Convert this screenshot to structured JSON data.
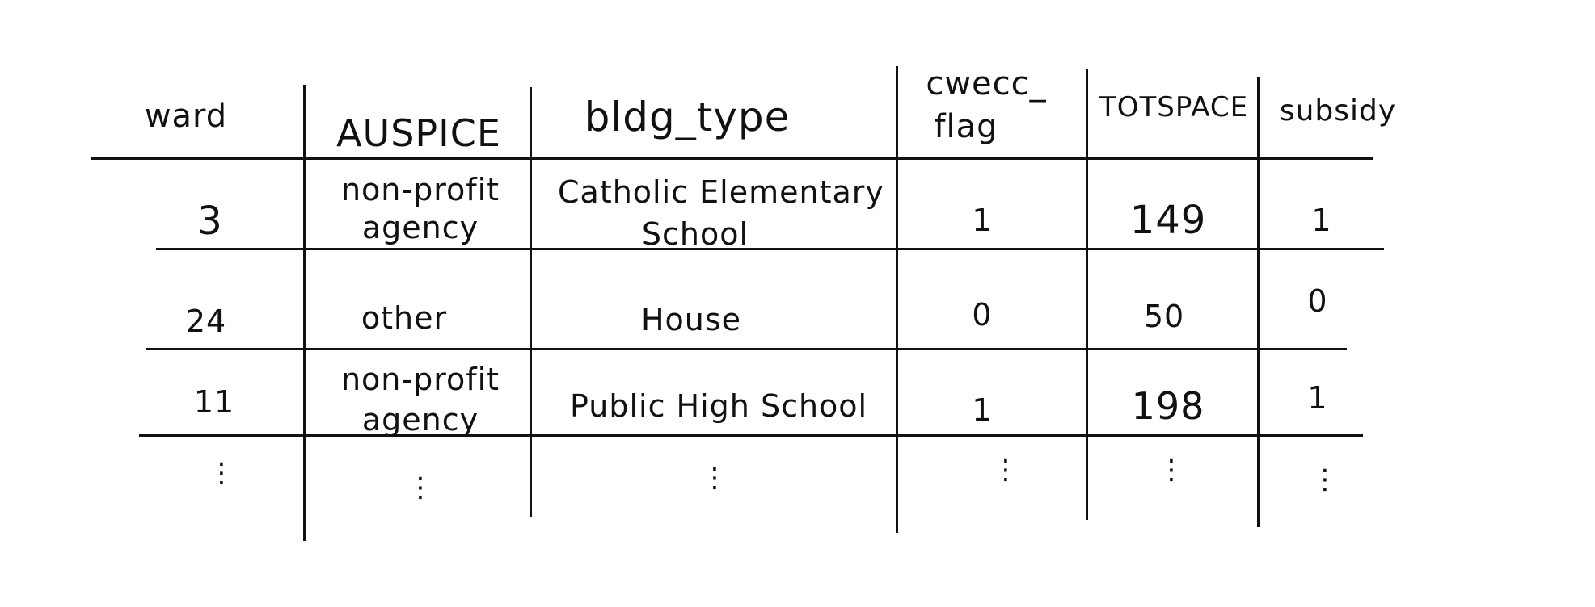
{
  "table": {
    "headers": {
      "ward": "ward",
      "auspice": "AUSPICE",
      "bldg_type": "bldg_type",
      "cwecc_flag_line1": "cwecc_",
      "cwecc_flag_line2": "flag",
      "totspace": "TOTSPACE",
      "subsidy": "subsidy"
    },
    "rows": [
      {
        "ward": "3",
        "auspice_line1": "non-profit",
        "auspice_line2": "agency",
        "bldg_type_line1": "Catholic Elementary",
        "bldg_type_line2": "School",
        "cwecc_flag": "1",
        "totspace": "149",
        "subsidy": "1"
      },
      {
        "ward": "24",
        "auspice": "other",
        "bldg_type": "House",
        "cwecc_flag": "0",
        "totspace": "50",
        "subsidy": "0"
      },
      {
        "ward": "11",
        "auspice_line1": "non-profit",
        "auspice_line2": "agency",
        "bldg_type": "Public High School",
        "cwecc_flag": "1",
        "totspace": "198",
        "subsidy": "1"
      }
    ],
    "continuation_mark": "⋮"
  }
}
